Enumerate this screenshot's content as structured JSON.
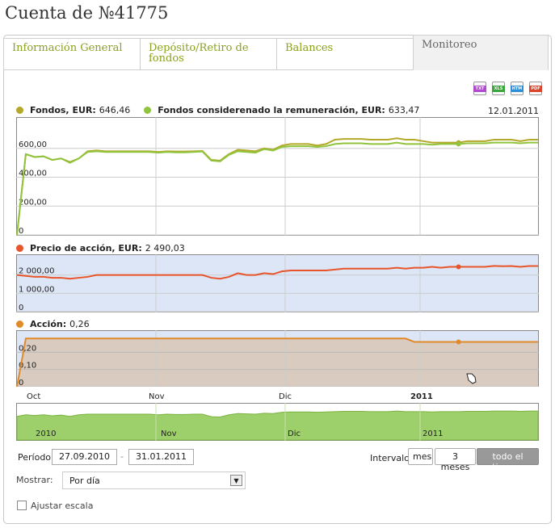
{
  "page": {
    "title": "Cuenta de №41775"
  },
  "tabs": [
    {
      "label": "Información General",
      "active": false
    },
    {
      "label": "Depósito/Retiro de fondos",
      "active": false
    },
    {
      "label": "Balances",
      "active": false
    },
    {
      "label": "Monitoreo",
      "active": true
    }
  ],
  "exports": [
    {
      "label": "TXT",
      "color": "#b04bd0",
      "icon": "txt-export-icon"
    },
    {
      "label": "XLS",
      "color": "#3aa63a",
      "icon": "xls-export-icon"
    },
    {
      "label": "HTM",
      "color": "#2f8fd6",
      "icon": "htm-export-icon"
    },
    {
      "label": "PDF",
      "color": "#d9442b",
      "icon": "pdf-export-icon"
    }
  ],
  "legend": {
    "fondos": {
      "label": "Fondos, EUR:",
      "value": "646,46",
      "color": "#b3a829"
    },
    "fondos_rem": {
      "label": "Fondos considerenado la remuneración, EUR:",
      "value": "633,47",
      "color": "#8fc43c"
    },
    "precio": {
      "label": "Precio de acción, EUR:",
      "value": "2 490,03",
      "color": "#e8552a"
    },
    "accion": {
      "label": "Acción:",
      "value": "0,26",
      "color": "#e08a2a"
    }
  },
  "date": "12.01.2011",
  "controls": {
    "periodo_label": "Período:",
    "date_from": "27.09.2010",
    "separator": "-",
    "date_to": "31.01.2011",
    "intervalo_label": "Intervalo:",
    "interval_buttons": [
      {
        "label": "mes",
        "active": false
      },
      {
        "label": "3 meses",
        "active": false
      },
      {
        "label": "todo el tiempo",
        "active": true
      }
    ],
    "mostrar_label": "Mostrar:",
    "mostrar_value": "Por día",
    "ajustar_label": "Ajustar escala",
    "ajustar_checked": false
  },
  "chart_data": [
    {
      "type": "line",
      "x_ticks": [
        "Oct",
        "Nov",
        "Dic",
        "2011"
      ],
      "y_ticks": [
        "0",
        "200,00",
        "400,00",
        "600,00"
      ],
      "ylim": [
        0,
        800
      ],
      "grid": true,
      "series": [
        {
          "name": "Fondos, EUR",
          "color": "#b3a829",
          "values": [
            0,
            560,
            540,
            545,
            520,
            530,
            505,
            530,
            580,
            585,
            580,
            580,
            580,
            580,
            580,
            580,
            575,
            580,
            578,
            578,
            580,
            582,
            520,
            515,
            560,
            590,
            585,
            580,
            600,
            590,
            620,
            630,
            630,
            630,
            620,
            630,
            660,
            665,
            665,
            665,
            660,
            660,
            660,
            670,
            660,
            660,
            650,
            640,
            640,
            640,
            640,
            650,
            650,
            650,
            660,
            660,
            660,
            650,
            660,
            660
          ]
        },
        {
          "name": "Fondos considerenado la remuneración, EUR",
          "color": "#8fc43c",
          "values": [
            0,
            560,
            540,
            545,
            520,
            530,
            500,
            530,
            575,
            580,
            575,
            575,
            575,
            575,
            575,
            575,
            570,
            575,
            572,
            572,
            575,
            578,
            515,
            510,
            555,
            580,
            575,
            570,
            595,
            585,
            610,
            615,
            615,
            615,
            610,
            615,
            630,
            635,
            635,
            635,
            630,
            630,
            630,
            640,
            630,
            630,
            630,
            625,
            630,
            630,
            630,
            635,
            635,
            635,
            640,
            640,
            640,
            635,
            640,
            640
          ]
        }
      ]
    },
    {
      "type": "line",
      "y_ticks": [
        "0",
        "1 000,00",
        "2 000,00"
      ],
      "ylim": [
        0,
        3000
      ],
      "grid": true,
      "series": [
        {
          "name": "Precio de acción, EUR",
          "color": "#e8552a",
          "values": [
            2000,
            1950,
            1900,
            1900,
            1850,
            1850,
            1800,
            1850,
            1900,
            2000,
            2000,
            2000,
            2000,
            2000,
            2000,
            2000,
            2000,
            2000,
            2000,
            2000,
            2000,
            2000,
            1850,
            1800,
            1900,
            2100,
            2000,
            2000,
            2100,
            2050,
            2200,
            2250,
            2250,
            2250,
            2250,
            2250,
            2300,
            2350,
            2350,
            2350,
            2350,
            2350,
            2350,
            2400,
            2350,
            2400,
            2400,
            2450,
            2400,
            2450,
            2450,
            2450,
            2450,
            2450,
            2500,
            2480,
            2490,
            2450,
            2490,
            2490
          ]
        }
      ]
    },
    {
      "type": "area",
      "y_ticks": [
        "0",
        "0,10",
        "0,20"
      ],
      "ylim": [
        0,
        0.3
      ],
      "grid": true,
      "series": [
        {
          "name": "Acción",
          "color": "#e08a2a",
          "values": [
            0,
            0.28,
            0.28,
            0.28,
            0.28,
            0.28,
            0.28,
            0.28,
            0.28,
            0.28,
            0.28,
            0.28,
            0.28,
            0.28,
            0.28,
            0.28,
            0.28,
            0.28,
            0.28,
            0.28,
            0.28,
            0.28,
            0.28,
            0.28,
            0.28,
            0.28,
            0.28,
            0.28,
            0.28,
            0.28,
            0.28,
            0.28,
            0.28,
            0.28,
            0.28,
            0.28,
            0.28,
            0.28,
            0.28,
            0.28,
            0.28,
            0.28,
            0.28,
            0.28,
            0.28,
            0.26,
            0.26,
            0.26,
            0.26,
            0.26,
            0.26,
            0.26,
            0.26,
            0.26,
            0.26,
            0.26,
            0.26,
            0.26,
            0.26,
            0.26
          ]
        }
      ]
    },
    {
      "type": "area",
      "x_ticks": [
        "2010",
        "Nov",
        "Dic",
        "2011"
      ],
      "series": [
        {
          "color": "#8fc43c",
          "values": [
            0.75,
            0.8,
            0.78,
            0.8,
            0.77,
            0.79,
            0.75,
            0.8,
            0.82,
            0.82,
            0.82,
            0.82,
            0.82,
            0.82,
            0.82,
            0.82,
            0.8,
            0.82,
            0.81,
            0.81,
            0.82,
            0.82,
            0.74,
            0.73,
            0.8,
            0.84,
            0.83,
            0.82,
            0.85,
            0.84,
            0.88,
            0.89,
            0.89,
            0.89,
            0.88,
            0.89,
            0.9,
            0.91,
            0.91,
            0.91,
            0.9,
            0.9,
            0.9,
            0.92,
            0.9,
            0.9,
            0.9,
            0.89,
            0.9,
            0.9,
            0.9,
            0.91,
            0.91,
            0.91,
            0.92,
            0.92,
            0.92,
            0.91,
            0.92,
            0.92
          ]
        }
      ]
    }
  ]
}
